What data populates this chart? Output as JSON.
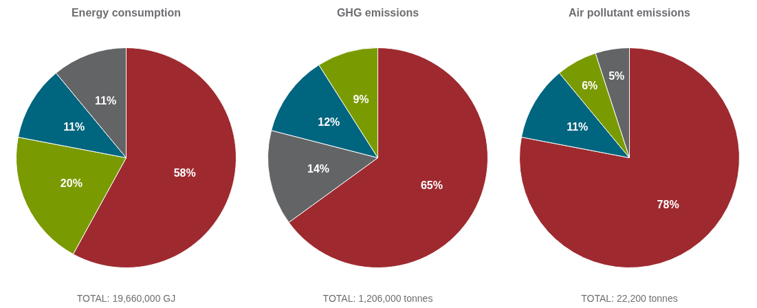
{
  "chart_data": [
    {
      "type": "pie",
      "title": "Energy consumption",
      "categories": [
        null,
        null,
        null,
        null
      ],
      "values": [
        58,
        20,
        11,
        11
      ],
      "value_labels": [
        "58%",
        "20%",
        "11%",
        "11%"
      ],
      "colors": [
        "#9e2a2f",
        "#7a9a01",
        "#00657f",
        "#636466"
      ],
      "annotations": [
        "TOTAL: 19,660,000 GJ"
      ]
    },
    {
      "type": "pie",
      "title": "GHG emissions",
      "categories": [
        null,
        null,
        null,
        null
      ],
      "values": [
        65,
        14,
        12,
        9
      ],
      "value_labels": [
        "65%",
        "14%",
        "12%",
        "9%"
      ],
      "colors": [
        "#9e2a2f",
        "#636466",
        "#00657f",
        "#7a9a01"
      ],
      "annotations": [
        "TOTAL: 1,206,000 tonnes"
      ]
    },
    {
      "type": "pie",
      "title": "Air pollutant emissions",
      "categories": [
        null,
        null,
        null,
        null
      ],
      "values": [
        78,
        11,
        6,
        5
      ],
      "value_labels": [
        "78%",
        "11%",
        "6%",
        "5%"
      ],
      "colors": [
        "#9e2a2f",
        "#00657f",
        "#7a9a01",
        "#636466"
      ],
      "annotations": [
        "TOTAL: 22,200 tonnes"
      ]
    }
  ]
}
